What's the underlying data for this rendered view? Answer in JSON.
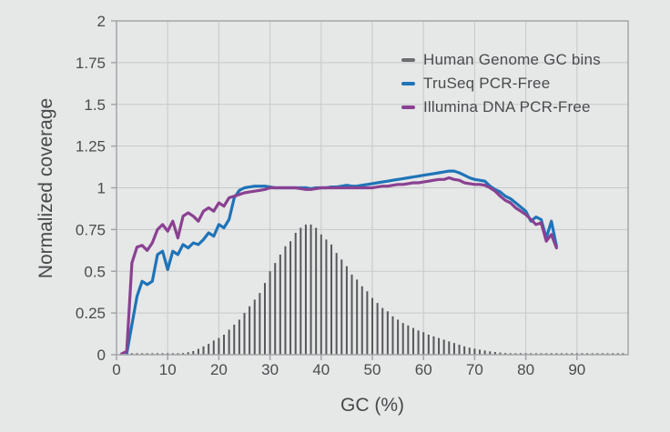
{
  "figure": {
    "background": "#e6e7e7"
  },
  "chart_data": {
    "type": "line+bar",
    "title": "",
    "xlabel": "GC (%)",
    "ylabel": "Normalized coverage",
    "xlim": [
      0,
      100
    ],
    "ylim": [
      0,
      2
    ],
    "x_ticks": [
      0,
      10,
      20,
      30,
      40,
      50,
      60,
      70,
      80,
      90
    ],
    "y_ticks": [
      0,
      0.25,
      0.5,
      0.75,
      1,
      1.25,
      1.5,
      1.75,
      2
    ],
    "grid": true,
    "axis_style": {
      "text_color": "#4a4b4d",
      "grid_color": "#c7c8ca",
      "border_color": "#a3a5a8",
      "tick_label_size": 17,
      "axis_title_size": 21
    },
    "bars": {
      "name": "Human Genome GC bins",
      "type": "bar",
      "color": "#57585b",
      "x": [
        1,
        2,
        3,
        4,
        5,
        6,
        7,
        8,
        9,
        10,
        11,
        12,
        13,
        14,
        15,
        16,
        17,
        18,
        19,
        20,
        21,
        22,
        23,
        24,
        25,
        26,
        27,
        28,
        29,
        30,
        31,
        32,
        33,
        34,
        35,
        36,
        37,
        38,
        39,
        40,
        41,
        42,
        43,
        44,
        45,
        46,
        47,
        48,
        49,
        50,
        51,
        52,
        53,
        54,
        55,
        56,
        57,
        58,
        59,
        60,
        61,
        62,
        63,
        64,
        65,
        66,
        67,
        68,
        69,
        70,
        71,
        72,
        73,
        74,
        75,
        76,
        77,
        78,
        79,
        80,
        81,
        82,
        83,
        84,
        85,
        86,
        87,
        88,
        89,
        90,
        91,
        92,
        93,
        94,
        95,
        96,
        97,
        98,
        99
      ],
      "values": [
        0.004,
        0.004,
        0.004,
        0.004,
        0.004,
        0.004,
        0.004,
        0.004,
        0.004,
        0.004,
        0.004,
        0.004,
        0.01,
        0.015,
        0.022,
        0.035,
        0.05,
        0.065,
        0.085,
        0.1,
        0.12,
        0.15,
        0.18,
        0.21,
        0.25,
        0.29,
        0.33,
        0.37,
        0.43,
        0.5,
        0.55,
        0.6,
        0.65,
        0.68,
        0.73,
        0.76,
        0.78,
        0.78,
        0.76,
        0.72,
        0.69,
        0.66,
        0.61,
        0.57,
        0.53,
        0.48,
        0.45,
        0.41,
        0.38,
        0.34,
        0.31,
        0.28,
        0.26,
        0.23,
        0.21,
        0.19,
        0.175,
        0.16,
        0.145,
        0.135,
        0.12,
        0.11,
        0.1,
        0.09,
        0.08,
        0.07,
        0.06,
        0.05,
        0.042,
        0.036,
        0.03,
        0.025,
        0.02,
        0.016,
        0.013,
        0.01,
        0.008,
        0.007,
        0.006,
        0.005,
        0.005,
        0.004,
        0.004,
        0.004,
        0.004,
        0.004,
        0.004,
        0.004,
        0.004,
        0.004,
        0.004,
        0.004,
        0.004,
        0.004,
        0.004,
        0.004,
        0.004,
        0.004,
        0.004
      ]
    },
    "series": [
      {
        "name": "TruSeq PCR-Free",
        "type": "line",
        "color": "#1e74b8",
        "x": [
          2,
          3,
          4,
          5,
          6,
          7,
          8,
          9,
          10,
          11,
          12,
          13,
          14,
          15,
          16,
          17,
          18,
          19,
          20,
          21,
          22,
          23,
          24,
          25,
          26,
          27,
          28,
          29,
          30,
          31,
          32,
          33,
          34,
          35,
          36,
          37,
          38,
          39,
          40,
          41,
          42,
          43,
          44,
          45,
          46,
          47,
          48,
          49,
          50,
          51,
          52,
          53,
          54,
          55,
          56,
          57,
          58,
          59,
          60,
          61,
          62,
          63,
          64,
          65,
          66,
          67,
          68,
          69,
          70,
          71,
          72,
          73,
          74,
          75,
          76,
          77,
          78,
          79,
          80,
          81,
          82,
          83,
          84,
          85,
          86
        ],
        "values": [
          0.005,
          0.18,
          0.35,
          0.44,
          0.42,
          0.44,
          0.6,
          0.62,
          0.51,
          0.62,
          0.6,
          0.66,
          0.64,
          0.67,
          0.66,
          0.69,
          0.73,
          0.71,
          0.78,
          0.76,
          0.81,
          0.94,
          0.985,
          1.0,
          1.005,
          1.01,
          1.01,
          1.01,
          1.005,
          1.0,
          1.0,
          1.0,
          1.0,
          1.0,
          1.0,
          1.0,
          0.995,
          1.0,
          1.0,
          1.0,
          1.005,
          1.005,
          1.01,
          1.015,
          1.01,
          1.01,
          1.015,
          1.02,
          1.025,
          1.03,
          1.035,
          1.04,
          1.045,
          1.05,
          1.055,
          1.06,
          1.065,
          1.07,
          1.075,
          1.08,
          1.085,
          1.09,
          1.095,
          1.1,
          1.1,
          1.09,
          1.075,
          1.06,
          1.05,
          1.045,
          1.04,
          1.01,
          0.99,
          0.975,
          0.95,
          0.935,
          0.91,
          0.885,
          0.86,
          0.8,
          0.825,
          0.81,
          0.7,
          0.8,
          0.65
        ]
      },
      {
        "name": "Illumina DNA PCR-Free",
        "type": "line",
        "color": "#8a4191",
        "x": [
          1,
          2,
          3,
          4,
          5,
          6,
          7,
          8,
          9,
          10,
          11,
          12,
          13,
          14,
          15,
          16,
          17,
          18,
          19,
          20,
          21,
          22,
          23,
          24,
          25,
          26,
          27,
          28,
          29,
          30,
          31,
          32,
          33,
          34,
          35,
          36,
          37,
          38,
          39,
          40,
          41,
          42,
          43,
          44,
          45,
          46,
          47,
          48,
          49,
          50,
          51,
          52,
          53,
          54,
          55,
          56,
          57,
          58,
          59,
          60,
          61,
          62,
          63,
          64,
          65,
          66,
          67,
          68,
          69,
          70,
          71,
          72,
          73,
          74,
          75,
          76,
          77,
          78,
          79,
          80,
          81,
          82,
          83,
          84,
          85,
          86
        ],
        "values": [
          0.005,
          0.02,
          0.55,
          0.645,
          0.655,
          0.625,
          0.67,
          0.75,
          0.78,
          0.74,
          0.8,
          0.7,
          0.83,
          0.85,
          0.83,
          0.8,
          0.86,
          0.88,
          0.86,
          0.91,
          0.89,
          0.94,
          0.95,
          0.96,
          0.97,
          0.975,
          0.98,
          0.985,
          0.99,
          1.0,
          1.0,
          1.0,
          1.0,
          1.0,
          1.0,
          0.995,
          0.99,
          0.99,
          0.995,
          1.0,
          1.0,
          1.0,
          1.0,
          1.0,
          1.0,
          1.0,
          1.0,
          1.0,
          1.0,
          1.0,
          1.005,
          1.01,
          1.01,
          1.015,
          1.02,
          1.02,
          1.025,
          1.03,
          1.03,
          1.035,
          1.04,
          1.045,
          1.05,
          1.05,
          1.06,
          1.05,
          1.045,
          1.03,
          1.025,
          1.02,
          1.02,
          1.015,
          1.0,
          0.98,
          0.95,
          0.925,
          0.91,
          0.88,
          0.86,
          0.84,
          0.81,
          0.78,
          0.79,
          0.68,
          0.72,
          0.64
        ]
      }
    ],
    "legend": {
      "position": "top-right",
      "items": [
        {
          "label": "Human Genome GC bins",
          "color": "#6d6e71"
        },
        {
          "label": "TruSeq PCR-Free",
          "color": "#1e74b8"
        },
        {
          "label": "Illumina DNA PCR-Free",
          "color": "#8a4191"
        }
      ]
    }
  }
}
